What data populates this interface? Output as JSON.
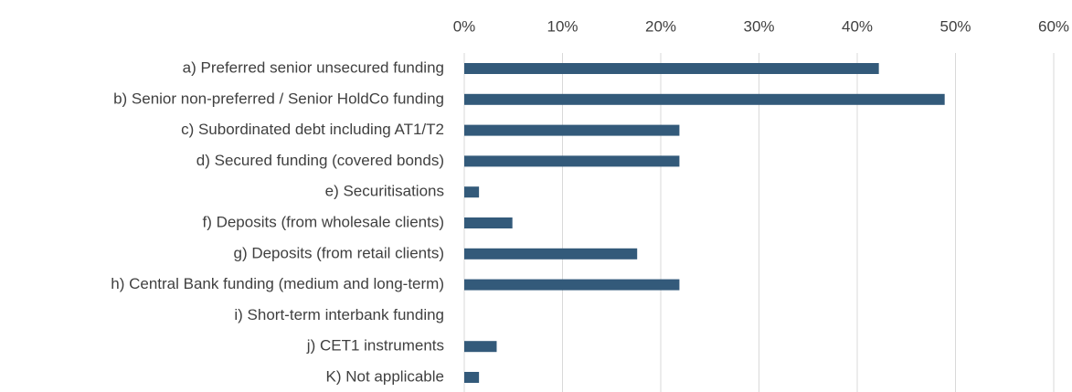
{
  "chart_data": {
    "type": "hbar",
    "categories": [
      "a) Preferred senior unsecured funding",
      "b) Senior non-preferred / Senior HoldCo funding",
      "c) Subordinated debt including AT1/T2",
      "d) Secured funding (covered bonds)",
      "e) Securitisations",
      "f) Deposits (from wholesale clients)",
      "g) Deposits (from retail clients)",
      "h) Central Bank funding (medium and long-term)",
      "i) Short-term interbank funding",
      "j) CET1 instruments",
      "K) Not applicable"
    ],
    "values": [
      42.2,
      48.9,
      21.9,
      21.9,
      1.5,
      4.9,
      17.6,
      21.9,
      0,
      3.3,
      1.5
    ],
    "color": "#335a7a",
    "xlim": [
      0,
      60
    ],
    "xticks": [
      {
        "value": 0,
        "label": "0%"
      },
      {
        "value": 10,
        "label": "10%"
      },
      {
        "value": 20,
        "label": "20%"
      },
      {
        "value": 30,
        "label": "30%"
      },
      {
        "value": 40,
        "label": "40%"
      },
      {
        "value": 50,
        "label": "50%"
      },
      {
        "value": 60,
        "label": "60%"
      }
    ],
    "grid": true
  }
}
